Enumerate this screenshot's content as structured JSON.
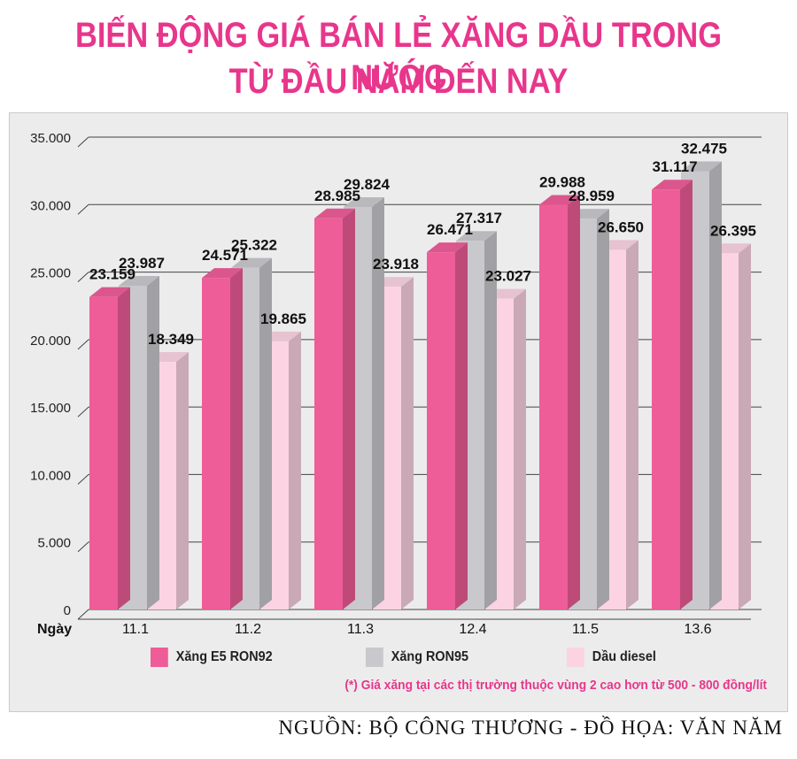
{
  "title_line1": "BIẾN ĐỘNG GIÁ BÁN LẺ XĂNG DẦU TRONG NƯỚC",
  "title_line2": "TỪ ĐẦU NĂM ĐẾN NAY",
  "note": "(*) Giá xăng tại các thị trường thuộc vùng 2 cao hơn từ 500 - 800 đồng/lít",
  "source": "NGUỒN: BỘ CÔNG THƯƠNG - ĐỒ HỌA: VĂN NĂM",
  "chart_data": {
    "type": "bar",
    "xlabel": "Ngày",
    "categories": [
      "11.1",
      "11.2",
      "11.3",
      "12.4",
      "11.5",
      "13.6"
    ],
    "ylim": [
      0,
      35000
    ],
    "yticks": [
      0,
      5000,
      10000,
      15000,
      20000,
      25000,
      30000,
      35000
    ],
    "ytick_labels": [
      "0",
      "5.000",
      "10.000",
      "15.000",
      "20.000",
      "25.000",
      "30.000",
      "35.000"
    ],
    "grid": true,
    "legend_position": "bottom",
    "series": [
      {
        "name": "Xăng E5 RON92",
        "color": "#ee5d98",
        "values": [
          23159,
          24571,
          28985,
          26471,
          29988,
          31117
        ],
        "labels": [
          "23.159",
          "24.571",
          "28.985",
          "26.471",
          "29.988",
          "31.117"
        ]
      },
      {
        "name": "Xăng RON95",
        "color": "#c9c8cc",
        "values": [
          23987,
          25322,
          29824,
          27317,
          28959,
          32475
        ],
        "labels": [
          "23.987",
          "25.322",
          "29.824",
          "27.317",
          "28.959",
          "32.475"
        ]
      },
      {
        "name": "Dầu diesel",
        "color": "#fbd3e2",
        "values": [
          18349,
          19865,
          23918,
          23027,
          26650,
          26395
        ],
        "labels": [
          "18.349",
          "19.865",
          "23.918",
          "23.027",
          "26.650",
          "26.395"
        ]
      }
    ]
  }
}
